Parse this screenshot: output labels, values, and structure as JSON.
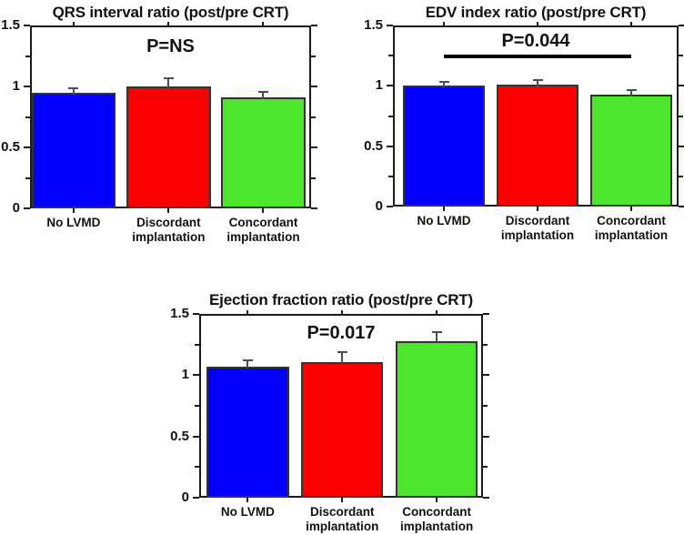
{
  "figure": {
    "background": "#ffffff",
    "bar_colors": [
      "#0000fc",
      "#fb0000",
      "#4ee52d"
    ],
    "bar_border_color": "#333333",
    "error_bar_color": "#4d4d4d",
    "axis_color": "#1a1a1a",
    "text_color": "#111111"
  },
  "chart_data": [
    {
      "id": "qrs",
      "type": "bar",
      "title": "QRS interval ratio (post/pre CRT)",
      "p_label": "P=NS",
      "categories": [
        "No LVMD",
        "Discordant\nimplantation",
        "Concordant\nimplantation"
      ],
      "values": [
        0.95,
        1.0,
        0.91
      ],
      "errors": [
        0.035,
        0.07,
        0.045
      ],
      "ylim": [
        0,
        1.5
      ],
      "yticks": [
        0,
        0.5,
        1,
        1.5
      ],
      "ytick_labels": [
        "0",
        "0.5",
        "1",
        "1.5"
      ],
      "yticks_minor": [
        0.25,
        0.75,
        1.25
      ],
      "grid": false,
      "legend": null,
      "significance_line": null
    },
    {
      "id": "edv",
      "type": "bar",
      "title": "EDV index ratio (post/pre CRT)",
      "p_label": "P=0.044",
      "categories": [
        "No LVMD",
        "Discordant\nimplantation",
        "Concordant\nimplantation"
      ],
      "values": [
        1.0,
        1.01,
        0.93
      ],
      "errors": [
        0.03,
        0.035,
        0.035
      ],
      "ylim": [
        0,
        1.5
      ],
      "yticks": [
        0,
        0.5,
        1,
        1.5
      ],
      "ytick_labels": [
        "0",
        "0.5",
        "1",
        "1.5"
      ],
      "yticks_minor": [
        0.25,
        0.75,
        1.25
      ],
      "grid": false,
      "legend": null,
      "significance_line": {
        "value": 1.24,
        "from_bar": 0,
        "to_bar": 2
      }
    },
    {
      "id": "ef",
      "type": "bar",
      "title": "Ejection fraction ratio (post/pre CRT)",
      "p_label": "P=0.017",
      "categories": [
        "No LVMD",
        "Discordant\nimplantation",
        "Concordant\nimplantation"
      ],
      "values": [
        1.07,
        1.11,
        1.28
      ],
      "errors": [
        0.05,
        0.08,
        0.07
      ],
      "ylim": [
        0,
        1.5
      ],
      "yticks": [
        0,
        0.5,
        1,
        1.5
      ],
      "ytick_labels": [
        "0",
        "0.5",
        "1",
        "1.5"
      ],
      "yticks_minor": [
        0.25,
        0.75,
        1.25
      ],
      "grid": false,
      "legend": null,
      "significance_line": null
    }
  ]
}
